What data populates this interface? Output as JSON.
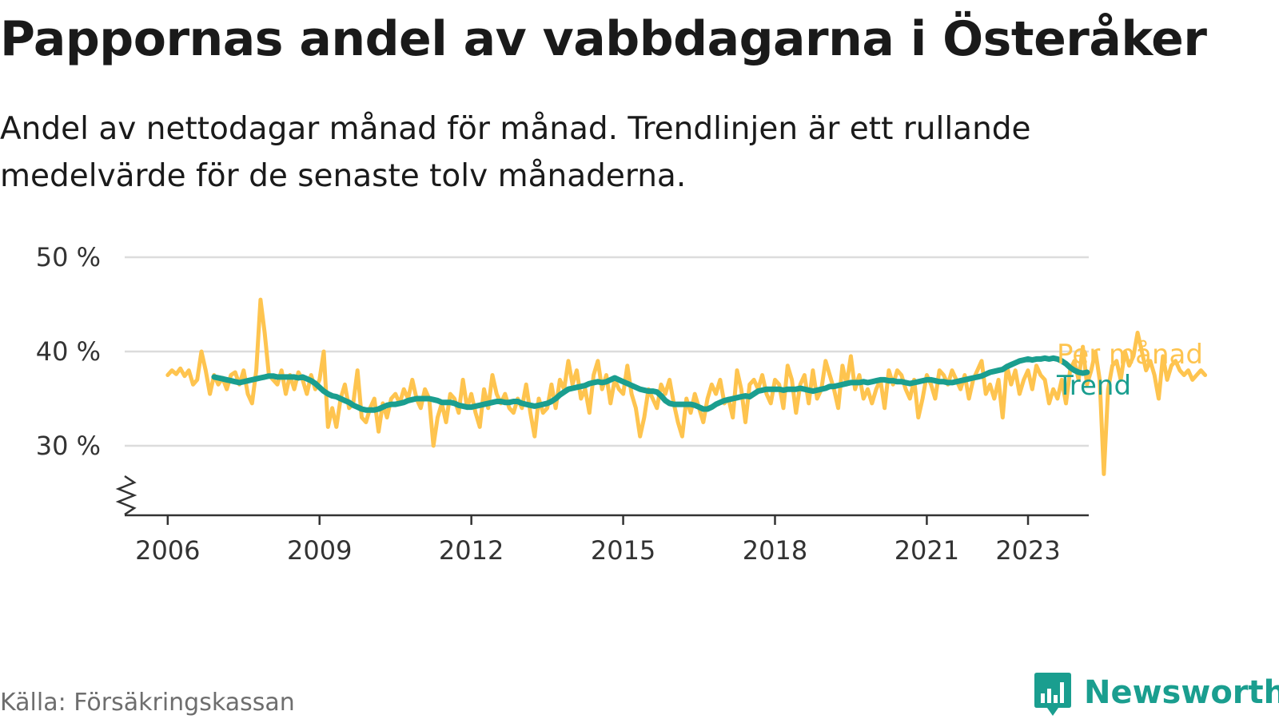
{
  "chart_data": {
    "type": "line",
    "title": "Pappornas andel av vabbdagarna i Österåker",
    "subtitle": "Andel av nettodagar månad för månad. Trendlinjen är ett rullande medelvärde för de senaste tolv månaderna.",
    "xlabel": "",
    "ylabel": "",
    "x_ticks": [
      "2006",
      "2009",
      "2012",
      "2015",
      "2018",
      "2021",
      "2023"
    ],
    "y_ticks": [
      "30 %",
      "40 %",
      "50 %"
    ],
    "y_tick_values": [
      30,
      40,
      50
    ],
    "ylim": [
      23,
      50
    ],
    "xlim": [
      2005.15,
      2024.2
    ],
    "y_axis_break": true,
    "grid": true,
    "legend": "right-inline",
    "series": [
      {
        "name": "Per månad",
        "color": "#fec44f",
        "x_start": 2006.0,
        "x_step": 0.08333,
        "values": [
          37.5,
          38.0,
          37.6,
          38.2,
          37.4,
          38.0,
          36.5,
          37.0,
          40.0,
          38.0,
          35.5,
          37.5,
          36.5,
          37.2,
          36.0,
          37.5,
          37.8,
          36.5,
          38.0,
          35.5,
          34.5,
          38.0,
          45.5,
          42.0,
          37.5,
          37.0,
          36.5,
          38.0,
          35.5,
          37.5,
          36.0,
          37.8,
          37.0,
          35.5,
          37.5,
          36.0,
          37.0,
          40.0,
          32.0,
          34.0,
          32.0,
          35.0,
          36.5,
          34.0,
          34.5,
          38.0,
          33.0,
          32.5,
          34.0,
          35.0,
          31.5,
          34.5,
          33.0,
          35.0,
          35.5,
          34.5,
          36.0,
          35.0,
          37.0,
          35.0,
          34.0,
          36.0,
          35.0,
          30.0,
          33.0,
          34.5,
          32.5,
          35.5,
          35.0,
          33.5,
          37.0,
          34.0,
          35.5,
          33.5,
          32.0,
          36.0,
          34.0,
          37.5,
          35.5,
          34.5,
          35.5,
          34.0,
          33.5,
          35.0,
          34.0,
          36.5,
          33.5,
          31.0,
          35.0,
          33.5,
          34.0,
          36.5,
          34.0,
          37.0,
          36.0,
          39.0,
          36.5,
          38.0,
          35.0,
          36.0,
          33.5,
          37.5,
          39.0,
          36.0,
          37.5,
          34.5,
          37.0,
          36.0,
          35.5,
          38.5,
          35.5,
          34.0,
          31.0,
          33.0,
          36.0,
          35.0,
          34.0,
          36.5,
          35.5,
          37.0,
          34.5,
          32.5,
          31.0,
          35.0,
          33.5,
          35.5,
          34.0,
          32.5,
          35.0,
          36.5,
          35.5,
          37.0,
          34.5,
          35.0,
          33.0,
          38.0,
          36.0,
          32.5,
          36.5,
          37.0,
          36.0,
          37.5,
          35.5,
          34.5,
          37.0,
          36.5,
          34.0,
          38.5,
          37.0,
          33.5,
          36.5,
          37.5,
          34.5,
          38.0,
          35.0,
          36.0,
          39.0,
          37.5,
          36.0,
          34.0,
          38.5,
          36.5,
          39.5,
          36.0,
          37.5,
          35.0,
          36.0,
          34.5,
          36.0,
          37.0,
          34.0,
          38.0,
          36.5,
          38.0,
          37.5,
          36.0,
          35.0,
          37.0,
          33.0,
          35.0,
          37.5,
          36.5,
          35.0,
          38.0,
          37.5,
          36.5,
          38.0,
          37.0,
          36.0,
          37.5,
          35.0,
          37.0,
          38.0,
          39.0,
          35.5,
          36.5,
          35.0,
          37.0,
          33.0,
          38.5,
          36.5,
          38.0,
          35.5,
          37.0,
          38.0,
          36.0,
          38.5,
          37.5,
          37.0,
          34.5,
          36.0,
          35.0,
          37.0,
          34.5,
          38.0,
          39.0,
          37.0,
          40.5,
          36.5,
          38.0,
          40.0,
          37.0,
          27.0,
          36.0,
          38.5,
          39.0,
          37.0,
          40.0,
          38.5,
          39.5,
          42.0,
          40.0,
          38.0,
          39.0,
          37.5,
          35.0,
          39.5,
          37.0,
          38.5,
          39.0,
          38.0,
          37.5,
          38.0,
          37.0,
          37.5,
          38.0,
          37.5
        ]
      },
      {
        "name": "Trend",
        "color": "#1a9e8f",
        "x_start": 2006.917,
        "x_step": 0.08333,
        "values": [
          37.3,
          37.2,
          37.1,
          37.0,
          36.9,
          36.8,
          36.7,
          36.8,
          36.9,
          37.0,
          37.1,
          37.2,
          37.3,
          37.4,
          37.4,
          37.3,
          37.3,
          37.3,
          37.3,
          37.3,
          37.2,
          37.3,
          37.1,
          36.9,
          36.6,
          36.2,
          35.8,
          35.5,
          35.3,
          35.2,
          35.0,
          34.8,
          34.6,
          34.3,
          34.1,
          33.9,
          33.8,
          33.8,
          33.8,
          33.9,
          34.1,
          34.3,
          34.4,
          34.4,
          34.5,
          34.6,
          34.8,
          34.9,
          35.0,
          35.0,
          35.0,
          35.0,
          34.9,
          34.8,
          34.6,
          34.6,
          34.6,
          34.5,
          34.3,
          34.2,
          34.1,
          34.1,
          34.2,
          34.3,
          34.4,
          34.5,
          34.6,
          34.7,
          34.7,
          34.6,
          34.6,
          34.7,
          34.7,
          34.5,
          34.4,
          34.3,
          34.2,
          34.3,
          34.4,
          34.5,
          34.7,
          35.0,
          35.4,
          35.7,
          36.0,
          36.1,
          36.2,
          36.3,
          36.4,
          36.6,
          36.7,
          36.8,
          36.7,
          36.8,
          37.0,
          37.2,
          37.0,
          36.8,
          36.6,
          36.4,
          36.2,
          36.0,
          35.9,
          35.8,
          35.8,
          35.7,
          35.3,
          34.8,
          34.5,
          34.4,
          34.4,
          34.4,
          34.4,
          34.4,
          34.3,
          34.1,
          33.9,
          33.9,
          34.1,
          34.4,
          34.6,
          34.8,
          34.9,
          35.0,
          35.1,
          35.2,
          35.3,
          35.2,
          35.5,
          35.8,
          35.9,
          36.0,
          36.0,
          36.0,
          36.0,
          35.9,
          36.0,
          36.0,
          36.0,
          36.1,
          36.0,
          35.9,
          35.8,
          35.9,
          36.0,
          36.1,
          36.3,
          36.3,
          36.4,
          36.5,
          36.6,
          36.7,
          36.7,
          36.7,
          36.8,
          36.7,
          36.8,
          36.9,
          37.0,
          37.0,
          36.9,
          36.9,
          36.8,
          36.8,
          36.7,
          36.6,
          36.7,
          36.8,
          36.9,
          37.0,
          37.0,
          36.9,
          36.8,
          36.8,
          36.7,
          36.7,
          36.8,
          36.9,
          37.0,
          37.1,
          37.2,
          37.3,
          37.4,
          37.6,
          37.8,
          37.9,
          38.0,
          38.1,
          38.4,
          38.6,
          38.8,
          39.0,
          39.1,
          39.2,
          39.1,
          39.2,
          39.2,
          39.3,
          39.2,
          39.3,
          39.2,
          39.0,
          38.7,
          38.3,
          38.0,
          37.8,
          37.7,
          37.8
        ]
      }
    ]
  },
  "source": "Källa: Försäkringskassan",
  "brand": {
    "name": "Newsworthy",
    "logo_icon": "bar-chart-speech-bubble-icon",
    "color": "#1a9e8f"
  }
}
